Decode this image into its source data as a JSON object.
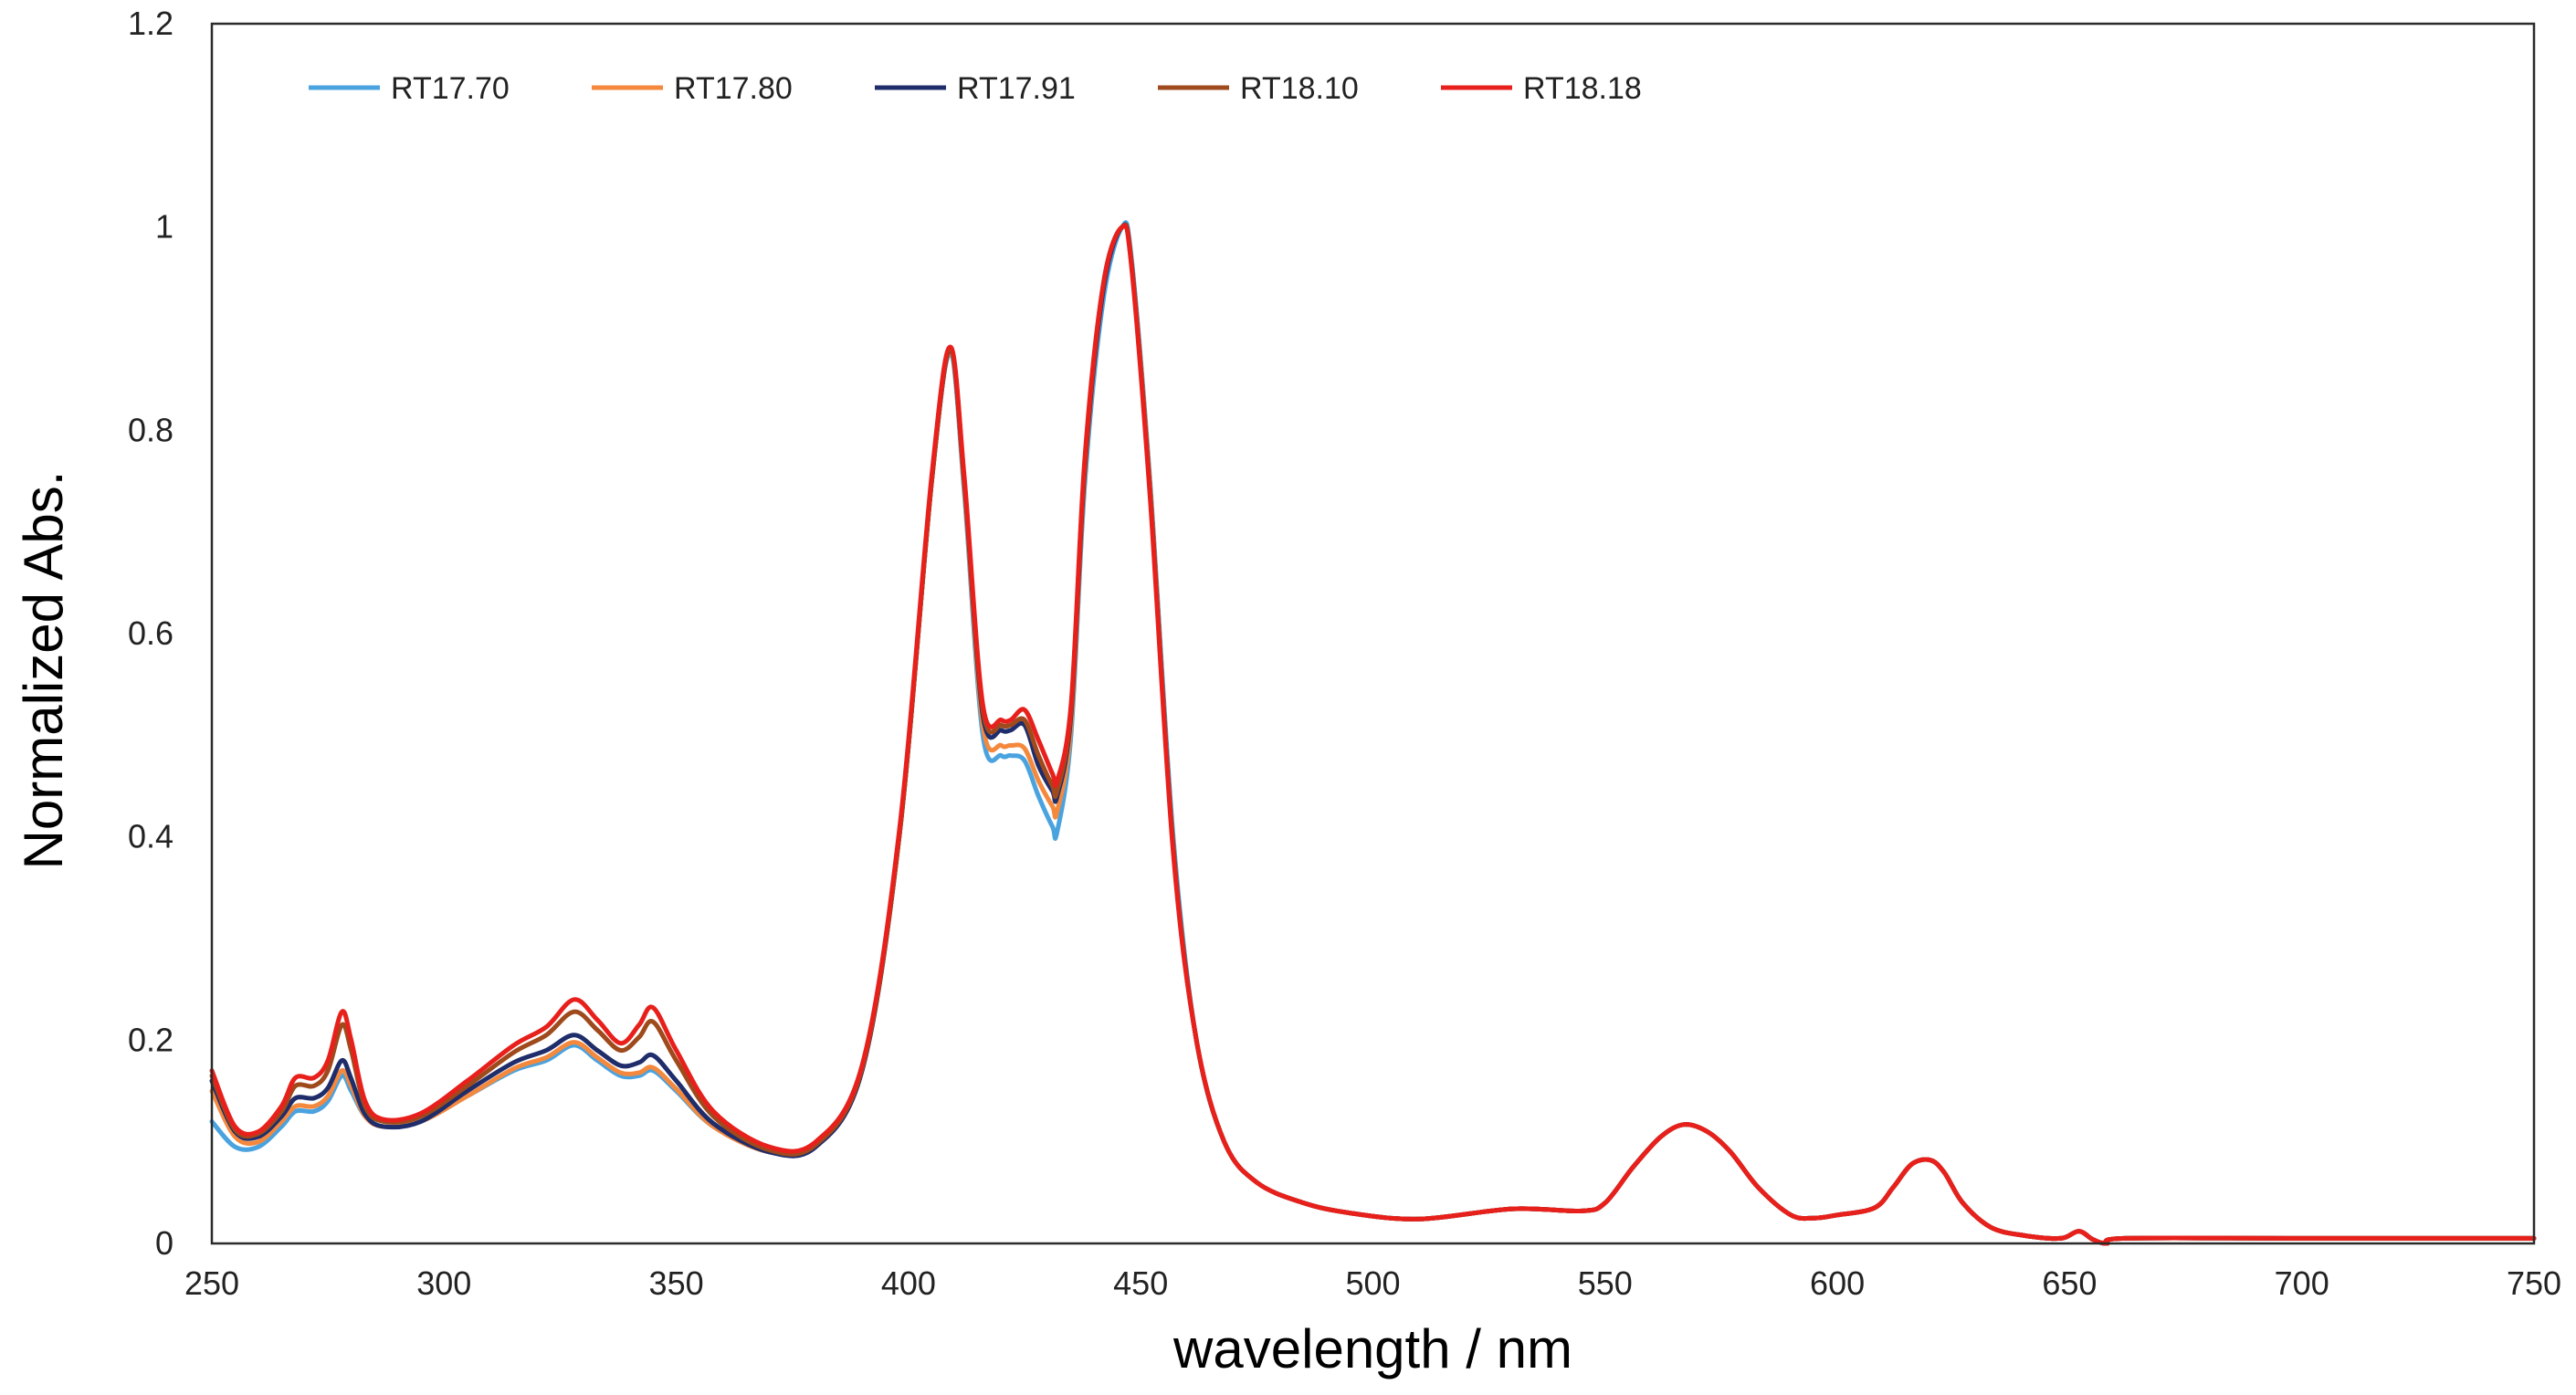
{
  "chart_data": {
    "type": "line",
    "title": "",
    "xlabel": "wavelength / nm",
    "ylabel": "Normalized Abs.",
    "xlim": [
      250,
      750
    ],
    "ylim": [
      0,
      1.2
    ],
    "xticks": [
      250,
      300,
      350,
      400,
      450,
      500,
      550,
      600,
      650,
      700,
      750
    ],
    "yticks": [
      0,
      0.2,
      0.4,
      0.6,
      0.8,
      1,
      1.2
    ],
    "xtick_labels": [
      "250",
      "300",
      "350",
      "400",
      "450",
      "500",
      "550",
      "600",
      "650",
      "700",
      "750"
    ],
    "ytick_labels": [
      "0",
      "0.2",
      "0.4",
      "0.6",
      "0.8",
      "1",
      "1.2"
    ],
    "grid": false,
    "legend_position": "top-left",
    "series": [
      {
        "name": "RT17.70",
        "color": "#4AA3DF",
        "x": [
          250,
          255,
          260,
          265,
          268,
          272,
          275,
          278,
          280,
          283,
          287,
          295,
          305,
          315,
          322,
          328,
          333,
          338,
          342,
          345,
          350,
          358,
          370,
          380,
          390,
          398,
          405,
          409,
          412,
          416,
          420,
          422,
          425,
          428,
          431,
          432,
          435,
          438,
          442,
          446,
          448,
          452,
          457,
          462,
          468,
          475,
          485,
          495,
          510,
          530,
          545,
          550,
          556,
          562,
          567,
          572,
          577,
          583,
          590,
          595,
          600,
          608,
          612,
          616,
          620,
          623,
          627,
          633,
          640,
          648,
          652,
          655,
          658,
          662,
          700,
          750
        ],
        "y": [
          0.12,
          0.095,
          0.095,
          0.115,
          0.13,
          0.13,
          0.14,
          0.165,
          0.15,
          0.125,
          0.115,
          0.12,
          0.145,
          0.17,
          0.18,
          0.195,
          0.18,
          0.165,
          0.165,
          0.17,
          0.15,
          0.115,
          0.09,
          0.095,
          0.17,
          0.4,
          0.75,
          0.875,
          0.74,
          0.5,
          0.48,
          0.48,
          0.475,
          0.44,
          0.41,
          0.405,
          0.5,
          0.75,
          0.93,
          1.0,
          0.97,
          0.75,
          0.4,
          0.2,
          0.1,
          0.06,
          0.04,
          0.03,
          0.024,
          0.034,
          0.032,
          0.04,
          0.075,
          0.105,
          0.117,
          0.11,
          0.09,
          0.055,
          0.028,
          0.025,
          0.028,
          0.035,
          0.055,
          0.078,
          0.082,
          0.07,
          0.04,
          0.016,
          0.008,
          0.005,
          0.012,
          0.004,
          0.0,
          0.005,
          0.005,
          0.005
        ]
      },
      {
        "name": "RT17.80",
        "color": "#F4893E",
        "x": [
          250,
          255,
          260,
          265,
          268,
          272,
          275,
          278,
          280,
          283,
          287,
          295,
          305,
          315,
          322,
          328,
          333,
          338,
          342,
          345,
          350,
          358,
          370,
          380,
          390,
          398,
          405,
          409,
          412,
          416,
          420,
          422,
          425,
          428,
          431,
          432,
          435,
          438,
          442,
          446,
          448,
          452,
          457,
          462,
          468,
          475,
          485,
          495,
          510,
          530,
          545,
          550,
          556,
          562,
          567,
          572,
          577,
          583,
          590,
          595,
          600,
          608,
          612,
          616,
          620,
          623,
          627,
          633,
          640,
          648,
          652,
          655,
          658,
          662,
          700,
          750
        ],
        "y": [
          0.15,
          0.105,
          0.1,
          0.12,
          0.135,
          0.135,
          0.145,
          0.17,
          0.155,
          0.125,
          0.115,
          0.12,
          0.145,
          0.172,
          0.183,
          0.198,
          0.183,
          0.168,
          0.168,
          0.173,
          0.152,
          0.115,
          0.09,
          0.095,
          0.17,
          0.4,
          0.75,
          0.877,
          0.745,
          0.51,
          0.49,
          0.49,
          0.487,
          0.455,
          0.43,
          0.425,
          0.51,
          0.76,
          0.94,
          1.0,
          0.965,
          0.745,
          0.39,
          0.2,
          0.1,
          0.06,
          0.04,
          0.03,
          0.024,
          0.034,
          0.032,
          0.04,
          0.075,
          0.105,
          0.117,
          0.11,
          0.09,
          0.055,
          0.028,
          0.025,
          0.028,
          0.035,
          0.055,
          0.078,
          0.082,
          0.07,
          0.04,
          0.016,
          0.008,
          0.005,
          0.012,
          0.004,
          0.0,
          0.005,
          0.005,
          0.005
        ]
      },
      {
        "name": "RT17.91",
        "color": "#1F2D6B",
        "x": [
          250,
          255,
          260,
          265,
          268,
          272,
          275,
          278,
          280,
          283,
          287,
          295,
          305,
          315,
          322,
          328,
          333,
          338,
          342,
          345,
          350,
          358,
          370,
          380,
          390,
          398,
          405,
          409,
          412,
          416,
          420,
          422,
          425,
          428,
          431,
          432,
          435,
          438,
          442,
          446,
          448,
          452,
          457,
          462,
          468,
          475,
          485,
          495,
          510,
          530,
          545,
          550,
          556,
          562,
          567,
          572,
          577,
          583,
          590,
          595,
          600,
          608,
          612,
          616,
          620,
          623,
          627,
          633,
          640,
          648,
          652,
          655,
          658,
          662,
          700,
          750
        ],
        "y": [
          0.16,
          0.11,
          0.105,
          0.125,
          0.143,
          0.143,
          0.153,
          0.18,
          0.162,
          0.127,
          0.115,
          0.12,
          0.15,
          0.178,
          0.19,
          0.205,
          0.19,
          0.175,
          0.178,
          0.185,
          0.16,
          0.118,
          0.09,
          0.095,
          0.17,
          0.4,
          0.75,
          0.878,
          0.75,
          0.52,
          0.505,
          0.505,
          0.51,
          0.47,
          0.445,
          0.44,
          0.52,
          0.765,
          0.94,
          1.0,
          0.965,
          0.74,
          0.39,
          0.2,
          0.1,
          0.06,
          0.04,
          0.03,
          0.024,
          0.034,
          0.032,
          0.04,
          0.075,
          0.105,
          0.117,
          0.11,
          0.09,
          0.055,
          0.028,
          0.025,
          0.028,
          0.035,
          0.055,
          0.078,
          0.082,
          0.07,
          0.04,
          0.016,
          0.008,
          0.005,
          0.012,
          0.004,
          0.0,
          0.005,
          0.005,
          0.005
        ]
      },
      {
        "name": "RT18.10",
        "color": "#9E4A1C",
        "x": [
          250,
          255,
          260,
          265,
          268,
          272,
          275,
          278,
          280,
          283,
          287,
          295,
          305,
          315,
          322,
          328,
          333,
          338,
          342,
          345,
          350,
          358,
          370,
          380,
          390,
          398,
          405,
          409,
          412,
          416,
          420,
          422,
          425,
          428,
          431,
          432,
          435,
          438,
          442,
          446,
          448,
          452,
          457,
          462,
          468,
          475,
          485,
          495,
          510,
          530,
          545,
          550,
          556,
          562,
          567,
          572,
          577,
          583,
          590,
          595,
          600,
          608,
          612,
          616,
          620,
          623,
          627,
          633,
          640,
          648,
          652,
          655,
          658,
          662,
          700,
          750
        ],
        "y": [
          0.165,
          0.112,
          0.108,
          0.13,
          0.155,
          0.155,
          0.17,
          0.215,
          0.19,
          0.135,
          0.12,
          0.125,
          0.155,
          0.188,
          0.205,
          0.228,
          0.21,
          0.19,
          0.203,
          0.218,
          0.18,
          0.125,
          0.092,
          0.097,
          0.172,
          0.4,
          0.75,
          0.88,
          0.752,
          0.525,
          0.51,
          0.51,
          0.515,
          0.48,
          0.45,
          0.445,
          0.525,
          0.77,
          0.945,
          1.0,
          0.965,
          0.74,
          0.39,
          0.2,
          0.1,
          0.06,
          0.04,
          0.03,
          0.024,
          0.034,
          0.032,
          0.04,
          0.075,
          0.105,
          0.117,
          0.11,
          0.09,
          0.055,
          0.028,
          0.025,
          0.028,
          0.035,
          0.055,
          0.078,
          0.082,
          0.07,
          0.04,
          0.016,
          0.008,
          0.005,
          0.012,
          0.004,
          0.0,
          0.005,
          0.005,
          0.005
        ]
      },
      {
        "name": "RT18.18",
        "color": "#E8201C",
        "x": [
          250,
          255,
          260,
          265,
          268,
          272,
          275,
          278,
          280,
          283,
          287,
          295,
          305,
          315,
          322,
          328,
          333,
          338,
          342,
          345,
          350,
          358,
          370,
          380,
          390,
          398,
          405,
          409,
          412,
          416,
          420,
          422,
          425,
          428,
          431,
          432,
          435,
          438,
          442,
          446,
          448,
          452,
          457,
          462,
          468,
          475,
          485,
          495,
          510,
          530,
          545,
          550,
          556,
          562,
          567,
          572,
          577,
          583,
          590,
          595,
          600,
          608,
          612,
          616,
          620,
          623,
          627,
          633,
          640,
          648,
          652,
          655,
          658,
          662,
          700,
          750
        ],
        "y": [
          0.17,
          0.115,
          0.11,
          0.135,
          0.163,
          0.163,
          0.18,
          0.228,
          0.2,
          0.14,
          0.122,
          0.128,
          0.16,
          0.195,
          0.213,
          0.24,
          0.22,
          0.197,
          0.215,
          0.232,
          0.19,
          0.13,
          0.095,
          0.1,
          0.175,
          0.405,
          0.755,
          0.882,
          0.755,
          0.53,
          0.515,
          0.515,
          0.525,
          0.495,
          0.462,
          0.455,
          0.53,
          0.775,
          0.945,
          1.0,
          0.962,
          0.735,
          0.385,
          0.2,
          0.1,
          0.06,
          0.04,
          0.03,
          0.024,
          0.034,
          0.032,
          0.04,
          0.075,
          0.105,
          0.117,
          0.11,
          0.09,
          0.055,
          0.028,
          0.025,
          0.028,
          0.035,
          0.055,
          0.078,
          0.082,
          0.07,
          0.04,
          0.016,
          0.008,
          0.005,
          0.012,
          0.004,
          0.0,
          0.005,
          0.005,
          0.005
        ]
      }
    ]
  }
}
